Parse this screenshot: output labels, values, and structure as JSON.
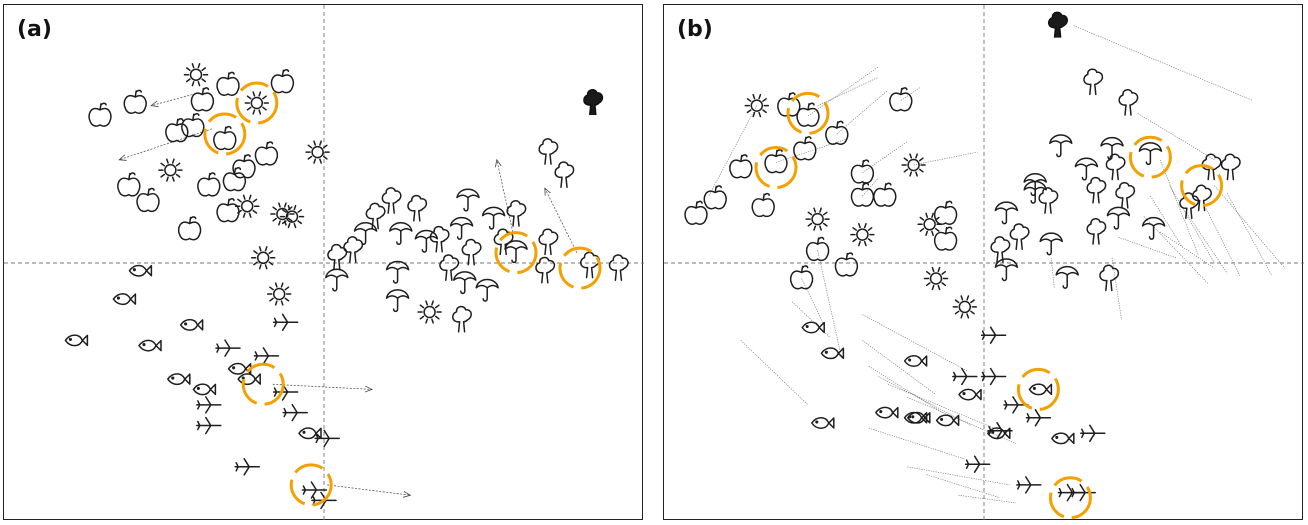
{
  "chart_data": [
    {
      "panel": "(a)",
      "type": "scatter",
      "xlim": [
        -1,
        1
      ],
      "ylim": [
        -1,
        1
      ],
      "crosshair": [
        0,
        0
      ],
      "highlight_color": "#f5a000",
      "points": [
        {
          "x": -0.7,
          "y": 0.57,
          "icon": "apple"
        },
        {
          "x": -0.59,
          "y": 0.62,
          "icon": "apple"
        },
        {
          "x": -0.38,
          "y": 0.63,
          "icon": "apple"
        },
        {
          "x": -0.3,
          "y": 0.69,
          "icon": "apple"
        },
        {
          "x": -0.13,
          "y": 0.7,
          "icon": "apple"
        },
        {
          "x": -0.46,
          "y": 0.51,
          "icon": "apple"
        },
        {
          "x": -0.31,
          "y": 0.48,
          "icon": "apple"
        },
        {
          "x": -0.18,
          "y": 0.42,
          "icon": "apple"
        },
        {
          "x": -0.25,
          "y": 0.37,
          "icon": "apple"
        },
        {
          "x": -0.28,
          "y": 0.32,
          "icon": "apple"
        },
        {
          "x": -0.36,
          "y": 0.3,
          "icon": "apple"
        },
        {
          "x": -0.41,
          "y": 0.53,
          "icon": "apple"
        },
        {
          "x": -0.4,
          "y": 0.73,
          "icon": "sun"
        },
        {
          "x": -0.21,
          "y": 0.62,
          "icon": "sun"
        },
        {
          "x": -0.48,
          "y": 0.36,
          "icon": "sun"
        },
        {
          "x": -0.02,
          "y": 0.43,
          "icon": "sun"
        },
        {
          "x": -0.13,
          "y": 0.19,
          "icon": "sun"
        },
        {
          "x": -0.24,
          "y": 0.22,
          "icon": "sun"
        },
        {
          "x": -0.19,
          "y": 0.02,
          "icon": "sun"
        },
        {
          "x": -0.14,
          "y": -0.12,
          "icon": "sun"
        },
        {
          "x": 0.33,
          "y": -0.19,
          "icon": "sun"
        },
        {
          "x": -0.1,
          "y": 0.18,
          "icon": "sun"
        },
        {
          "x": -0.61,
          "y": 0.3,
          "icon": "apple"
        },
        {
          "x": -0.55,
          "y": 0.24,
          "icon": "apple"
        },
        {
          "x": -0.42,
          "y": 0.13,
          "icon": "apple"
        },
        {
          "x": -0.3,
          "y": 0.2,
          "icon": "apple"
        },
        {
          "x": -0.58,
          "y": -0.03,
          "icon": "fish"
        },
        {
          "x": -0.63,
          "y": -0.14,
          "icon": "fish"
        },
        {
          "x": -0.78,
          "y": -0.3,
          "icon": "fish"
        },
        {
          "x": -0.55,
          "y": -0.32,
          "icon": "fish"
        },
        {
          "x": -0.42,
          "y": -0.24,
          "icon": "fish"
        },
        {
          "x": -0.46,
          "y": -0.45,
          "icon": "fish"
        },
        {
          "x": -0.38,
          "y": -0.49,
          "icon": "fish"
        },
        {
          "x": -0.24,
          "y": -0.45,
          "icon": "fish"
        },
        {
          "x": -0.05,
          "y": -0.66,
          "icon": "fish"
        },
        {
          "x": -0.27,
          "y": -0.41,
          "icon": "fish"
        },
        {
          "x": -0.3,
          "y": -0.33,
          "icon": "plane"
        },
        {
          "x": -0.18,
          "y": -0.36,
          "icon": "plane"
        },
        {
          "x": -0.12,
          "y": -0.23,
          "icon": "plane"
        },
        {
          "x": -0.36,
          "y": -0.55,
          "icon": "plane"
        },
        {
          "x": -0.12,
          "y": -0.5,
          "icon": "plane"
        },
        {
          "x": -0.09,
          "y": -0.58,
          "icon": "plane"
        },
        {
          "x": -0.36,
          "y": -0.63,
          "icon": "plane"
        },
        {
          "x": 0.01,
          "y": -0.68,
          "icon": "plane"
        },
        {
          "x": -0.24,
          "y": -0.79,
          "icon": "plane"
        },
        {
          "x": -0.03,
          "y": -0.88,
          "icon": "plane"
        },
        {
          "x": 0.0,
          "y": -0.92,
          "icon": "plane"
        },
        {
          "x": 0.04,
          "y": -0.06,
          "icon": "umbrella"
        },
        {
          "x": 0.13,
          "y": 0.12,
          "icon": "umbrella"
        },
        {
          "x": 0.24,
          "y": 0.12,
          "icon": "umbrella"
        },
        {
          "x": 0.32,
          "y": 0.09,
          "icon": "umbrella"
        },
        {
          "x": 0.45,
          "y": 0.25,
          "icon": "umbrella"
        },
        {
          "x": 0.43,
          "y": 0.14,
          "icon": "umbrella"
        },
        {
          "x": 0.23,
          "y": -0.03,
          "icon": "umbrella"
        },
        {
          "x": 0.44,
          "y": -0.07,
          "icon": "umbrella"
        },
        {
          "x": 0.6,
          "y": 0.05,
          "icon": "umbrella"
        },
        {
          "x": 0.23,
          "y": -0.14,
          "icon": "umbrella"
        },
        {
          "x": 0.51,
          "y": -0.1,
          "icon": "umbrella"
        },
        {
          "x": 0.53,
          "y": 0.18,
          "icon": "umbrella"
        },
        {
          "x": 0.09,
          "y": 0.05,
          "icon": "tree"
        },
        {
          "x": 0.29,
          "y": 0.21,
          "icon": "tree"
        },
        {
          "x": 0.36,
          "y": 0.09,
          "icon": "tree"
        },
        {
          "x": 0.39,
          "y": -0.02,
          "icon": "tree"
        },
        {
          "x": 0.46,
          "y": 0.04,
          "icon": "tree"
        },
        {
          "x": 0.56,
          "y": 0.08,
          "icon": "tree"
        },
        {
          "x": 0.7,
          "y": 0.08,
          "icon": "tree"
        },
        {
          "x": 0.69,
          "y": -0.03,
          "icon": "tree"
        },
        {
          "x": 0.83,
          "y": -0.01,
          "icon": "tree"
        },
        {
          "x": 0.92,
          "y": -0.02,
          "icon": "tree"
        },
        {
          "x": 0.75,
          "y": 0.34,
          "icon": "tree"
        },
        {
          "x": 0.7,
          "y": 0.43,
          "icon": "tree"
        },
        {
          "x": 0.6,
          "y": 0.19,
          "icon": "tree"
        },
        {
          "x": 0.43,
          "y": -0.22,
          "icon": "tree"
        },
        {
          "x": 0.21,
          "y": 0.24,
          "icon": "tree"
        },
        {
          "x": 0.04,
          "y": 0.02,
          "icon": "tree"
        },
        {
          "x": 0.16,
          "y": 0.18,
          "icon": "tree"
        }
      ],
      "dark_points": [
        {
          "x": 0.84,
          "y": 0.62,
          "icon": "tree"
        }
      ],
      "rings": [
        {
          "x": -0.21,
          "y": 0.62
        },
        {
          "x": -0.31,
          "y": 0.5
        },
        {
          "x": -0.19,
          "y": -0.47
        },
        {
          "x": 0.6,
          "y": 0.04
        },
        {
          "x": 0.8,
          "y": -0.02
        },
        {
          "x": -0.04,
          "y": -0.86
        }
      ],
      "arrows": [
        {
          "x1": -0.39,
          "y1": 0.66,
          "x2": -0.54,
          "y2": 0.61
        },
        {
          "x1": -0.35,
          "y1": 0.52,
          "x2": -0.64,
          "y2": 0.4
        },
        {
          "x1": 0.59,
          "y1": 0.12,
          "x2": 0.54,
          "y2": 0.4
        },
        {
          "x1": 0.79,
          "y1": 0.04,
          "x2": 0.69,
          "y2": 0.29
        },
        {
          "x1": -0.16,
          "y1": -0.47,
          "x2": 0.15,
          "y2": -0.49
        },
        {
          "x1": 0.01,
          "y1": -0.86,
          "x2": 0.27,
          "y2": -0.9
        }
      ]
    },
    {
      "panel": "(b)",
      "type": "scatter",
      "xlim": [
        -1,
        1
      ],
      "ylim": [
        -1,
        1
      ],
      "crosshair": [
        0,
        0
      ],
      "highlight_color": "#f5a000",
      "points": [
        {
          "x": -0.71,
          "y": 0.61,
          "icon": "sun"
        },
        {
          "x": -0.61,
          "y": 0.61,
          "icon": "apple"
        },
        {
          "x": -0.55,
          "y": 0.57,
          "icon": "apple"
        },
        {
          "x": -0.46,
          "y": 0.5,
          "icon": "apple"
        },
        {
          "x": -0.26,
          "y": 0.63,
          "icon": "apple"
        },
        {
          "x": -0.76,
          "y": 0.37,
          "icon": "apple"
        },
        {
          "x": -0.65,
          "y": 0.39,
          "icon": "apple"
        },
        {
          "x": -0.56,
          "y": 0.44,
          "icon": "apple"
        },
        {
          "x": -0.84,
          "y": 0.25,
          "icon": "apple"
        },
        {
          "x": -0.9,
          "y": 0.19,
          "icon": "apple"
        },
        {
          "x": -0.69,
          "y": 0.22,
          "icon": "apple"
        },
        {
          "x": -0.38,
          "y": 0.35,
          "icon": "apple"
        },
        {
          "x": -0.31,
          "y": 0.26,
          "icon": "apple"
        },
        {
          "x": -0.38,
          "y": 0.26,
          "icon": "apple"
        },
        {
          "x": -0.12,
          "y": 0.19,
          "icon": "apple"
        },
        {
          "x": -0.12,
          "y": 0.09,
          "icon": "apple"
        },
        {
          "x": -0.22,
          "y": 0.38,
          "icon": "sun"
        },
        {
          "x": -0.52,
          "y": 0.17,
          "icon": "sun"
        },
        {
          "x": -0.38,
          "y": 0.11,
          "icon": "sun"
        },
        {
          "x": -0.17,
          "y": 0.15,
          "icon": "sun"
        },
        {
          "x": -0.15,
          "y": -0.06,
          "icon": "sun"
        },
        {
          "x": -0.06,
          "y": -0.17,
          "icon": "sun"
        },
        {
          "x": -0.52,
          "y": 0.05,
          "icon": "apple"
        },
        {
          "x": -0.57,
          "y": -0.06,
          "icon": "apple"
        },
        {
          "x": -0.43,
          "y": -0.01,
          "icon": "apple"
        },
        {
          "x": -0.54,
          "y": -0.25,
          "icon": "fish"
        },
        {
          "x": -0.48,
          "y": -0.35,
          "icon": "fish"
        },
        {
          "x": -0.51,
          "y": -0.62,
          "icon": "fish"
        },
        {
          "x": -0.31,
          "y": -0.58,
          "icon": "fish"
        },
        {
          "x": -0.22,
          "y": -0.6,
          "icon": "fish"
        },
        {
          "x": -0.12,
          "y": -0.61,
          "icon": "fish"
        },
        {
          "x": -0.05,
          "y": -0.51,
          "icon": "fish"
        },
        {
          "x": 0.17,
          "y": -0.49,
          "icon": "fish"
        },
        {
          "x": -0.22,
          "y": -0.38,
          "icon": "fish"
        },
        {
          "x": -0.21,
          "y": -0.6,
          "icon": "fish"
        },
        {
          "x": 0.04,
          "y": -0.66,
          "icon": "fish"
        },
        {
          "x": 0.24,
          "y": -0.68,
          "icon": "fish"
        },
        {
          "x": 0.03,
          "y": -0.28,
          "icon": "plane"
        },
        {
          "x": -0.06,
          "y": -0.44,
          "icon": "plane"
        },
        {
          "x": 0.03,
          "y": -0.44,
          "icon": "plane"
        },
        {
          "x": 0.1,
          "y": -0.55,
          "icon": "plane"
        },
        {
          "x": 0.17,
          "y": -0.6,
          "icon": "plane"
        },
        {
          "x": 0.05,
          "y": -0.65,
          "icon": "plane"
        },
        {
          "x": -0.02,
          "y": -0.78,
          "icon": "plane"
        },
        {
          "x": 0.14,
          "y": -0.86,
          "icon": "plane"
        },
        {
          "x": 0.27,
          "y": -0.89,
          "icon": "plane"
        },
        {
          "x": 0.31,
          "y": -0.89,
          "icon": "plane"
        },
        {
          "x": 0.34,
          "y": -0.66,
          "icon": "plane"
        },
        {
          "x": 0.07,
          "y": 0.2,
          "icon": "umbrella"
        },
        {
          "x": 0.16,
          "y": 0.31,
          "icon": "umbrella"
        },
        {
          "x": 0.24,
          "y": 0.46,
          "icon": "umbrella"
        },
        {
          "x": 0.4,
          "y": 0.45,
          "icon": "umbrella"
        },
        {
          "x": 0.52,
          "y": 0.43,
          "icon": "umbrella"
        },
        {
          "x": 0.32,
          "y": 0.37,
          "icon": "umbrella"
        },
        {
          "x": 0.21,
          "y": 0.08,
          "icon": "umbrella"
        },
        {
          "x": 0.42,
          "y": 0.18,
          "icon": "umbrella"
        },
        {
          "x": 0.53,
          "y": 0.14,
          "icon": "umbrella"
        },
        {
          "x": 0.26,
          "y": -0.05,
          "icon": "umbrella"
        },
        {
          "x": 0.07,
          "y": -0.02,
          "icon": "umbrella"
        },
        {
          "x": 0.16,
          "y": 0.28,
          "icon": "umbrella"
        },
        {
          "x": 0.34,
          "y": 0.7,
          "icon": "tree"
        },
        {
          "x": 0.45,
          "y": 0.62,
          "icon": "tree"
        },
        {
          "x": 0.41,
          "y": 0.37,
          "icon": "tree"
        },
        {
          "x": 0.35,
          "y": 0.28,
          "icon": "tree"
        },
        {
          "x": 0.44,
          "y": 0.26,
          "icon": "tree"
        },
        {
          "x": 0.35,
          "y": 0.12,
          "icon": "tree"
        },
        {
          "x": 0.11,
          "y": 0.1,
          "icon": "tree"
        },
        {
          "x": 0.05,
          "y": 0.05,
          "icon": "tree"
        },
        {
          "x": 0.71,
          "y": 0.37,
          "icon": "tree"
        },
        {
          "x": 0.77,
          "y": 0.37,
          "icon": "tree"
        },
        {
          "x": 0.68,
          "y": 0.25,
          "icon": "tree"
        },
        {
          "x": 0.64,
          "y": 0.22,
          "icon": "tree"
        },
        {
          "x": 0.39,
          "y": -0.06,
          "icon": "tree"
        },
        {
          "x": 0.2,
          "y": 0.24,
          "icon": "tree"
        }
      ],
      "dark_points": [
        {
          "x": 0.23,
          "y": 0.92,
          "icon": "tree"
        }
      ],
      "rings": [
        {
          "x": -0.55,
          "y": 0.58
        },
        {
          "x": -0.65,
          "y": 0.37
        },
        {
          "x": 0.52,
          "y": 0.41
        },
        {
          "x": 0.68,
          "y": 0.3
        },
        {
          "x": 0.17,
          "y": -0.49
        },
        {
          "x": 0.27,
          "y": -0.91
        }
      ],
      "lines": [
        {
          "x1": -0.71,
          "y1": 0.61,
          "x2": -0.86,
          "y2": 0.26
        },
        {
          "x1": -0.55,
          "y1": 0.57,
          "x2": -0.33,
          "y2": 0.76
        },
        {
          "x1": -0.52,
          "y1": 0.61,
          "x2": -0.33,
          "y2": 0.72
        },
        {
          "x1": -0.46,
          "y1": 0.5,
          "x2": -0.3,
          "y2": 0.67
        },
        {
          "x1": -0.26,
          "y1": 0.63,
          "x2": -0.2,
          "y2": 0.68
        },
        {
          "x1": -0.65,
          "y1": 0.39,
          "x2": -0.43,
          "y2": 0.48
        },
        {
          "x1": -0.38,
          "y1": 0.35,
          "x2": -0.24,
          "y2": 0.47
        },
        {
          "x1": -0.22,
          "y1": 0.38,
          "x2": -0.02,
          "y2": 0.43
        },
        {
          "x1": -0.38,
          "y1": 0.26,
          "x2": -0.33,
          "y2": 0.33
        },
        {
          "x1": -0.52,
          "y1": 0.05,
          "x2": -0.45,
          "y2": -0.34
        },
        {
          "x1": -0.57,
          "y1": -0.06,
          "x2": -0.5,
          "y2": -0.24
        },
        {
          "x1": -0.76,
          "y1": -0.3,
          "x2": -0.55,
          "y2": -0.55
        },
        {
          "x1": -0.6,
          "y1": -0.15,
          "x2": -0.48,
          "y2": -0.29
        },
        {
          "x1": -0.38,
          "y1": -0.2,
          "x2": -0.05,
          "y2": -0.42
        },
        {
          "x1": -0.38,
          "y1": -0.3,
          "x2": -0.15,
          "y2": -0.51
        },
        {
          "x1": -0.36,
          "y1": -0.4,
          "x2": -0.13,
          "y2": -0.58
        },
        {
          "x1": -0.33,
          "y1": -0.44,
          "x2": -0.04,
          "y2": -0.63
        },
        {
          "x1": -0.3,
          "y1": -0.47,
          "x2": 0.07,
          "y2": -0.66
        },
        {
          "x1": -0.24,
          "y1": -0.52,
          "x2": 0.1,
          "y2": -0.7
        },
        {
          "x1": -0.36,
          "y1": -0.64,
          "x2": -0.06,
          "y2": -0.76
        },
        {
          "x1": -0.24,
          "y1": -0.79,
          "x2": 0.08,
          "y2": -0.86
        },
        {
          "x1": -0.18,
          "y1": -0.82,
          "x2": 0.05,
          "y2": -0.91
        },
        {
          "x1": -0.08,
          "y1": -0.9,
          "x2": 0.1,
          "y2": -0.93
        },
        {
          "x1": 0.28,
          "y1": 0.92,
          "x2": 0.84,
          "y2": 0.63
        },
        {
          "x1": 0.48,
          "y1": 0.58,
          "x2": 0.72,
          "y2": 0.4
        },
        {
          "x1": 0.55,
          "y1": 0.4,
          "x2": 0.67,
          "y2": 0.03
        },
        {
          "x1": 0.58,
          "y1": 0.3,
          "x2": 0.72,
          "y2": 0.0
        },
        {
          "x1": 0.72,
          "y1": 0.3,
          "x2": 0.94,
          "y2": -0.02
        },
        {
          "x1": 0.76,
          "y1": 0.27,
          "x2": 0.9,
          "y2": -0.05
        },
        {
          "x1": 0.69,
          "y1": 0.22,
          "x2": 0.8,
          "y2": -0.05
        },
        {
          "x1": 0.63,
          "y1": 0.2,
          "x2": 0.76,
          "y2": -0.04
        },
        {
          "x1": 0.55,
          "y1": 0.12,
          "x2": 0.72,
          "y2": -0.02
        },
        {
          "x1": 0.5,
          "y1": 0.18,
          "x2": 0.7,
          "y2": -0.08
        },
        {
          "x1": 0.42,
          "y1": 0.1,
          "x2": 0.6,
          "y2": 0.02
        },
        {
          "x1": 0.52,
          "y1": 0.26,
          "x2": 0.62,
          "y2": 0.06
        },
        {
          "x1": 0.4,
          "y1": 0.02,
          "x2": 0.43,
          "y2": -0.22
        },
        {
          "x1": 0.21,
          "y1": 0.02,
          "x2": 0.22,
          "y2": -0.1
        }
      ]
    }
  ]
}
